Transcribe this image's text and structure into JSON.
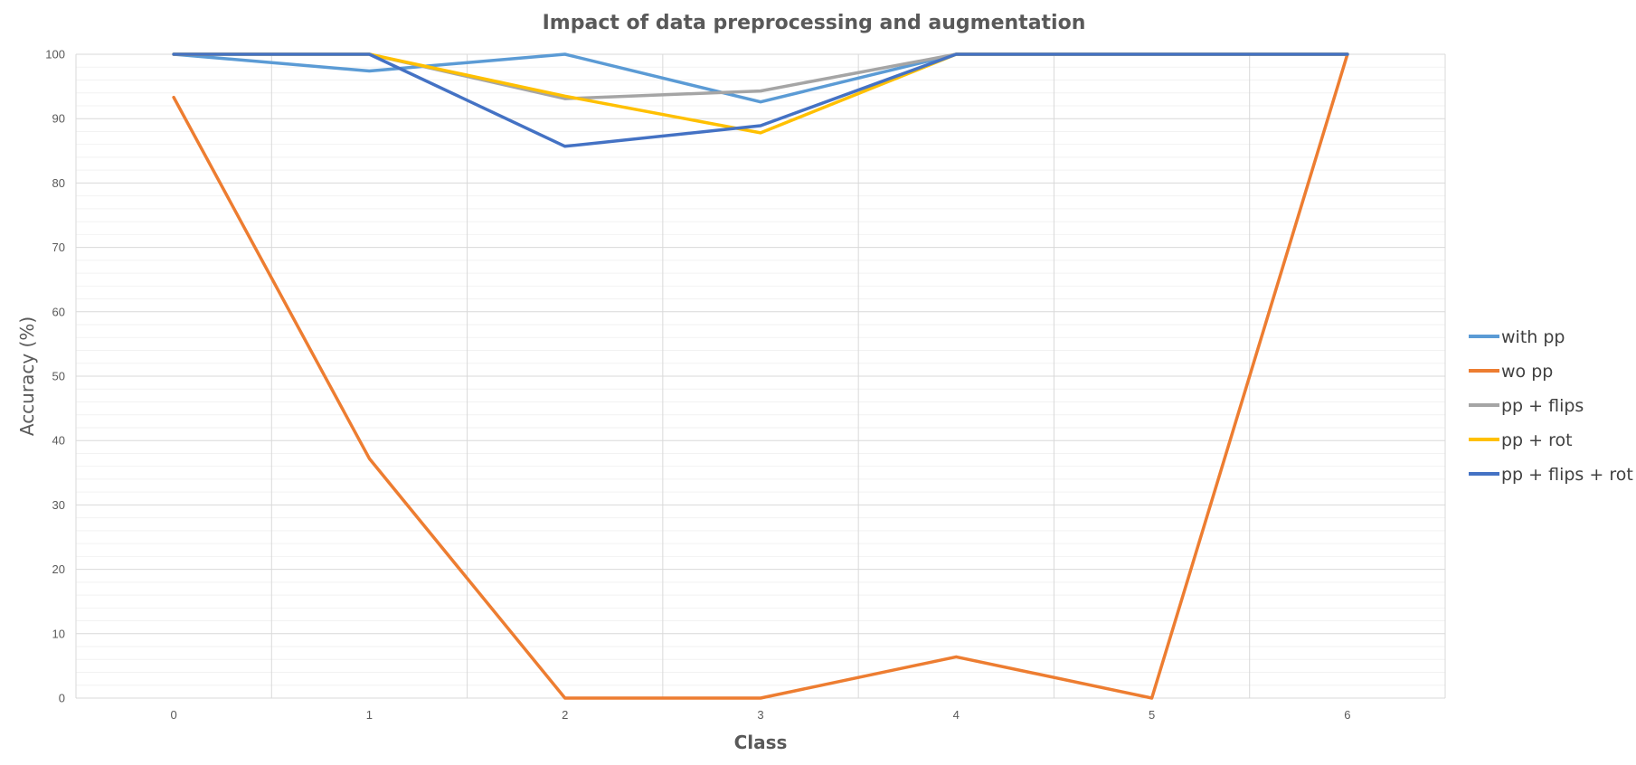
{
  "chart_data": {
    "type": "line",
    "title": "Impact of data preprocessing and augmentation",
    "xlabel": "Class",
    "ylabel": "Accuracy (%)",
    "x": [
      0,
      1,
      2,
      3,
      4,
      5,
      6
    ],
    "x_tick_labels": [
      "0",
      "1",
      "2",
      "3",
      "4",
      "5",
      "6"
    ],
    "ylim": [
      0,
      100
    ],
    "y_ticks": [
      0,
      10,
      20,
      30,
      40,
      50,
      60,
      70,
      80,
      90,
      100
    ],
    "y_tick_labels": [
      "0",
      "10",
      "20",
      "30",
      "40",
      "50",
      "60",
      "70",
      "80",
      "90",
      "100"
    ],
    "grid": true,
    "legend_position": "right",
    "series": [
      {
        "name": "with pp",
        "color": "#5B9BD5",
        "values": [
          100,
          97.4,
          100,
          92.6,
          100,
          100,
          100
        ]
      },
      {
        "name": "wo pp",
        "color": "#ED7D31",
        "values": [
          93.3,
          37.2,
          0,
          0,
          6.4,
          0,
          100
        ]
      },
      {
        "name": "pp + flips",
        "color": "#A5A5A5",
        "values": [
          100,
          100,
          93.1,
          94.3,
          100,
          100,
          100
        ]
      },
      {
        "name": "pp + rot",
        "color": "#FFC000",
        "values": [
          100,
          100,
          93.5,
          87.8,
          100,
          100,
          100
        ]
      },
      {
        "name": "pp + flips + rot",
        "color": "#4472C4",
        "values": [
          100,
          100,
          85.7,
          88.9,
          100,
          100,
          100
        ]
      }
    ]
  }
}
